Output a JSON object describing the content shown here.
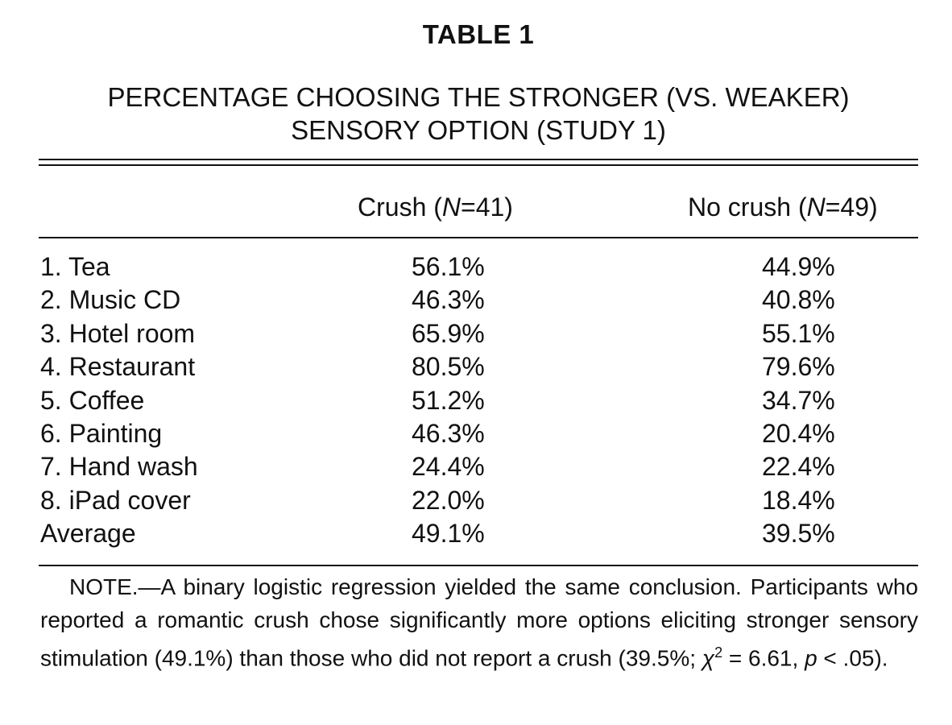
{
  "table": {
    "label": "TABLE 1",
    "title_line1": "PERCENTAGE CHOOSING THE STRONGER (VS. WEAKER)",
    "title_line2": "SENSORY OPTION (STUDY 1)",
    "columns": [
      {
        "name": "Crush",
        "n_label": "N",
        "n_value": "41"
      },
      {
        "name": "No crush",
        "n_label": "N",
        "n_value": "49"
      }
    ],
    "rows": [
      {
        "label": "1. Tea",
        "crush": "56.1%",
        "no_crush": "44.9%"
      },
      {
        "label": "2. Music CD",
        "crush": "46.3%",
        "no_crush": "40.8%"
      },
      {
        "label": "3. Hotel room",
        "crush": "65.9%",
        "no_crush": "55.1%"
      },
      {
        "label": "4. Restaurant",
        "crush": "80.5%",
        "no_crush": "79.6%"
      },
      {
        "label": "5. Coffee",
        "crush": "51.2%",
        "no_crush": "34.7%"
      },
      {
        "label": "6. Painting",
        "crush": "46.3%",
        "no_crush": "20.4%"
      },
      {
        "label": "7. Hand wash",
        "crush": "24.4%",
        "no_crush": "22.4%"
      },
      {
        "label": "8. iPad cover",
        "crush": "22.0%",
        "no_crush": "18.4%"
      },
      {
        "label": "Average",
        "crush": "49.1%",
        "no_crush": "39.5%"
      }
    ],
    "note": {
      "prefix": "NOTE.—A binary logistic regression yielded the same conclusion. Participants who reported a romantic crush chose significantly more options eliciting stronger sensory stimulation (49.1%) than those who did not report a crush (39.5%; ",
      "chi_symbol": "χ",
      "chi_superscript": "2",
      "chi_value": " = 6.61, ",
      "p_symbol": "p",
      "p_value": " < .05)."
    }
  }
}
